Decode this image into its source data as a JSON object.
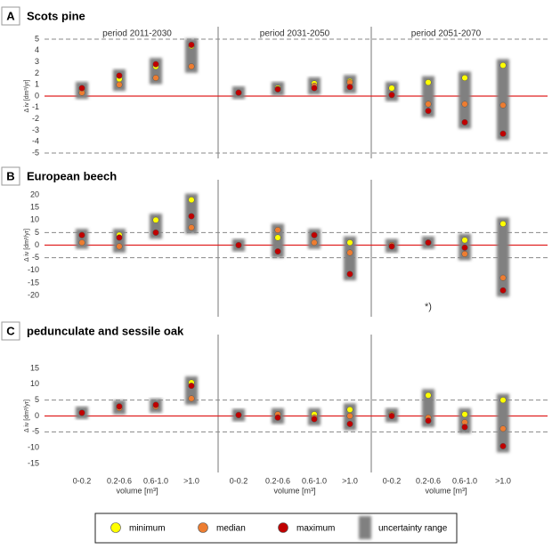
{
  "legend": [
    {
      "name": "minimum",
      "color": "#ffff00"
    },
    {
      "name": "median",
      "color": "#ed7d31"
    },
    {
      "name": "maximum",
      "color": "#c00000"
    },
    {
      "name": "uncertainty range",
      "color": "#808080"
    }
  ],
  "chart_data": [
    {
      "type": "scatter",
      "letter": "A",
      "title": "Scots pine",
      "ylabel": "Δ iv [dm³/yr]",
      "periods": [
        "period 2011-2030",
        "period 2031-2050",
        "period 2051-2070"
      ],
      "ylim": [
        -5,
        5
      ],
      "yticks": [
        5,
        4,
        3,
        2,
        1,
        0,
        -1,
        -2,
        -3,
        -4,
        -5
      ],
      "dashed_lines": [
        5,
        -5
      ],
      "baseline": 0,
      "series": [
        {
          "values": [
            0.6,
            1.5,
            2.6,
            4.4,
            0.3,
            0.7,
            1.1,
            1.3,
            0.7,
            1.2,
            1.6,
            2.7
          ]
        },
        {
          "values": [
            0.3,
            1.0,
            1.6,
            2.6,
            0.3,
            0.6,
            0.9,
            1.2,
            0.1,
            -0.7,
            -0.7,
            -0.8
          ]
        },
        {
          "values": [
            0.7,
            1.8,
            2.8,
            4.5,
            0.3,
            0.6,
            0.7,
            0.8,
            0.1,
            -1.3,
            -2.3,
            -3.3
          ]
        }
      ]
    },
    {
      "type": "scatter",
      "letter": "B",
      "title": "European beech",
      "ylabel": "Δ iv [dm³/yr]",
      "annotation": "*)",
      "ylim": [
        -20,
        20
      ],
      "yticks": [
        20,
        15,
        10,
        5,
        0,
        -5,
        -10,
        -15,
        -20
      ],
      "dashed_lines": [
        5,
        -5
      ],
      "baseline": 0,
      "series": [
        {
          "values": [
            4,
            4,
            10,
            18,
            0,
            3,
            4,
            1,
            0,
            1,
            2,
            8.5
          ]
        },
        {
          "values": [
            1,
            -0.5,
            5,
            7,
            0,
            6,
            1,
            -3,
            0,
            1,
            -3.5,
            -13
          ]
        },
        {
          "values": [
            4,
            3,
            5,
            11.5,
            0,
            -2.5,
            4,
            -11.5,
            -0.5,
            1,
            -1,
            -18
          ]
        }
      ]
    },
    {
      "type": "scatter",
      "letter": "C",
      "title": "pedunculate and sessile oak",
      "ylabel": "Δ iv [dm³/yr]",
      "categories": [
        "0-0.2",
        "0.2-0.6",
        "0.6-1.0",
        ">1.0",
        "0-0.2",
        "0.2-0.6",
        "0.6-1.0",
        ">1.0",
        "0-0.2",
        "0.2-0.6",
        "0.6-1.0",
        ">1.0"
      ],
      "xlabels": [
        "volume [m³]",
        "volume [m³]",
        "volume [m³]"
      ],
      "ylim": [
        -15,
        15
      ],
      "yticks": [
        15,
        10,
        5,
        0,
        -5,
        -10,
        -15
      ],
      "dashed_lines": [
        5,
        -5
      ],
      "baseline": 0,
      "series": [
        {
          "values": [
            1,
            3,
            3.5,
            10.5,
            0.3,
            0.5,
            0.5,
            2,
            0.5,
            6.5,
            0.5,
            5
          ]
        },
        {
          "values": [
            1,
            2.5,
            3,
            5.5,
            0.3,
            0.5,
            -0.5,
            0,
            0.3,
            -0.5,
            -2,
            -4
          ]
        },
        {
          "values": [
            1,
            3,
            3.5,
            9.5,
            0.3,
            -0.5,
            -1,
            -2.5,
            0,
            -1.5,
            -3.5,
            -9.5
          ]
        }
      ]
    }
  ]
}
